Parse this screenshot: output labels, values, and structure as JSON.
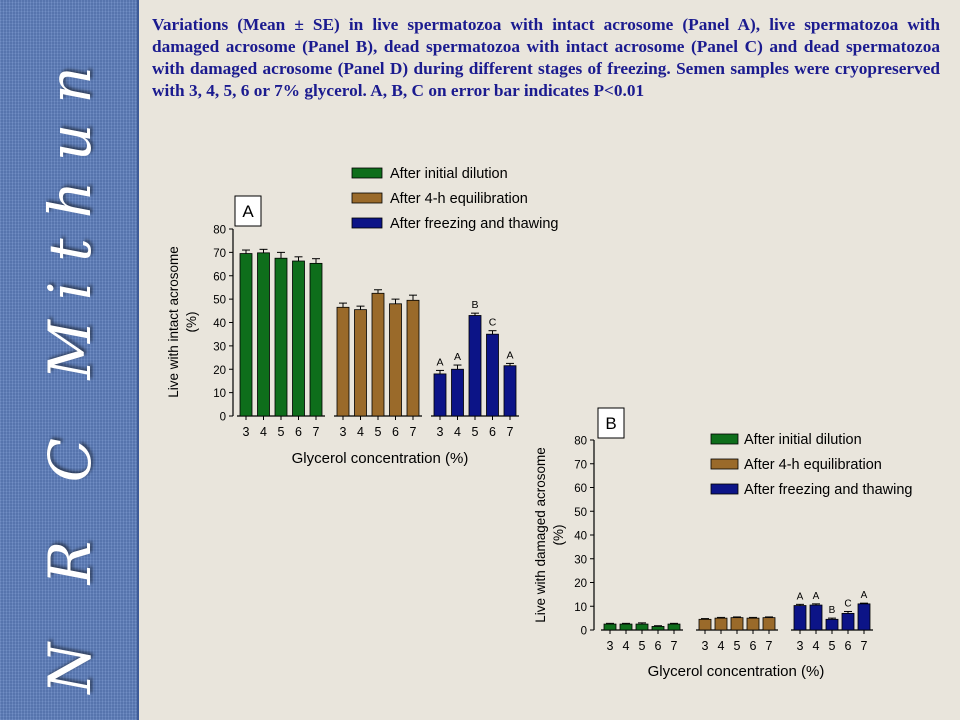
{
  "brand": "N R C Mithun",
  "caption": "Variations (Mean ± SE) in live spermatozoa with intact acrosome (Panel A), live spermatozoa with damaged acrosome (Panel B), dead spermatozoa with intact acrosome (Panel C) and dead spermatozoa with damaged acrosome (Panel D) during different stages of freezing. Semen samples were cryopreserved with 3, 4, 5, 6 or 7% glycerol. A, B, C on error bar indicates P<0.01",
  "colors": {
    "series": [
      "#0e6e1b",
      "#9a6a2a",
      "#0c1487"
    ],
    "sidebar": "#5e7fbd",
    "caption": "#1b1b8f"
  },
  "chart_data": [
    {
      "type": "bar",
      "panel_label": "A",
      "categories": [
        "3",
        "4",
        "5",
        "6",
        "7"
      ],
      "series": [
        {
          "name": "After initial dilution",
          "values": [
            69.5,
            69.8,
            67.5,
            66.3,
            65.3
          ],
          "errors": [
            1.5,
            1.5,
            2.5,
            1.8,
            2.0
          ]
        },
        {
          "name": "After 4-h equilibration",
          "values": [
            46.5,
            45.5,
            52.5,
            48.0,
            49.5
          ],
          "errors": [
            1.8,
            1.5,
            1.5,
            2.0,
            2.2
          ]
        },
        {
          "name": "After freezing and thawing",
          "values": [
            18.0,
            20.0,
            43.0,
            35.0,
            21.5
          ],
          "errors": [
            1.5,
            1.8,
            1.0,
            1.5,
            1.0
          ],
          "significance": [
            "A",
            "A",
            "B",
            "C",
            "A"
          ]
        }
      ],
      "xlabel": "Glycerol concentration (%)",
      "ylabel": "Live with intact acrosome (%)",
      "ylim": [
        0,
        80
      ],
      "yticks": [
        0,
        10,
        20,
        30,
        40,
        50,
        60,
        70,
        80
      ],
      "legend": "top",
      "grid": false
    },
    {
      "type": "bar",
      "panel_label": "B",
      "categories": [
        "3",
        "4",
        "5",
        "6",
        "7"
      ],
      "series": [
        {
          "name": "After initial dilution",
          "values": [
            2.5,
            2.5,
            2.5,
            1.5,
            2.5
          ],
          "errors": [
            0.3,
            0.3,
            0.5,
            0.3,
            0.3
          ]
        },
        {
          "name": "After 4-h equilibration",
          "values": [
            4.5,
            5.0,
            5.2,
            5.0,
            5.2
          ],
          "errors": [
            0.3,
            0.3,
            0.3,
            0.3,
            0.3
          ]
        },
        {
          "name": "After freezing and thawing",
          "values": [
            10.3,
            10.5,
            4.5,
            7.0,
            11.0
          ],
          "errors": [
            0.5,
            0.5,
            0.5,
            0.8,
            0.3
          ],
          "significance": [
            "A",
            "A",
            "B",
            "C",
            "A"
          ]
        }
      ],
      "xlabel": "Glycerol concentration (%)",
      "ylabel": "Live with damaged acrosome (%)",
      "ylim": [
        0,
        80
      ],
      "yticks": [
        0,
        10,
        20,
        30,
        40,
        50,
        60,
        70,
        80
      ],
      "legend": "right",
      "grid": false
    }
  ]
}
